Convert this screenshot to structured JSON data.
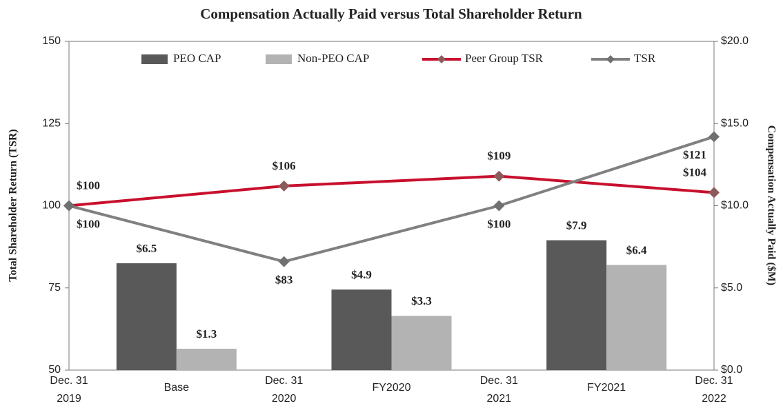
{
  "chart_data": {
    "type": "bar-line",
    "title": "Compensation Actually Paid versus Total Shareholder Return",
    "ylabel": "Total Shareholder Return (TSR)",
    "y2label": "Compensation Actually Paid ($M)",
    "ylim": [
      50,
      150
    ],
    "yticks": [
      50,
      75,
      100,
      125,
      150
    ],
    "y2lim": [
      0,
      20
    ],
    "y2ticks": [
      {
        "value": 0,
        "label": "$0.0"
      },
      {
        "value": 5,
        "label": "$5.0"
      },
      {
        "value": 10,
        "label": "$10.0"
      },
      {
        "value": 15,
        "label": "$15.0"
      },
      {
        "value": 20,
        "label": "$20.0"
      }
    ],
    "categories": [
      "Base",
      "FY2020",
      "FY2021"
    ],
    "x": [
      "Dec. 31\n2019",
      "Dec. 31\n2020",
      "Dec. 31\n2021",
      "Dec. 31\n2022"
    ],
    "legend": "top",
    "series": [
      {
        "name": "PEO CAP",
        "type": "bar",
        "axis": "y2",
        "color": "#595959",
        "values": [
          6.5,
          4.9,
          7.9
        ],
        "value_labels": [
          "$6.5",
          "$4.9",
          "$7.9"
        ]
      },
      {
        "name": "Non-PEO CAP",
        "type": "bar",
        "axis": "y2",
        "color": "#b3b3b3",
        "values": [
          1.3,
          3.3,
          6.4
        ],
        "value_labels": [
          "$1.3",
          "$3.3",
          "$6.4"
        ]
      },
      {
        "name": "Peer Group TSR",
        "type": "line",
        "color": "#c8102e",
        "marker_color": "#8c5a5a",
        "values": [
          100,
          106,
          109,
          104
        ],
        "value_labels": [
          "$100",
          "$106",
          "$109",
          "$104"
        ]
      },
      {
        "name": "TSR",
        "type": "line",
        "color": "#808080",
        "marker_color": "#707070",
        "values": [
          100,
          83,
          100,
          121
        ],
        "value_labels": [
          "$100",
          "$83",
          "$100",
          "$121"
        ]
      }
    ]
  }
}
